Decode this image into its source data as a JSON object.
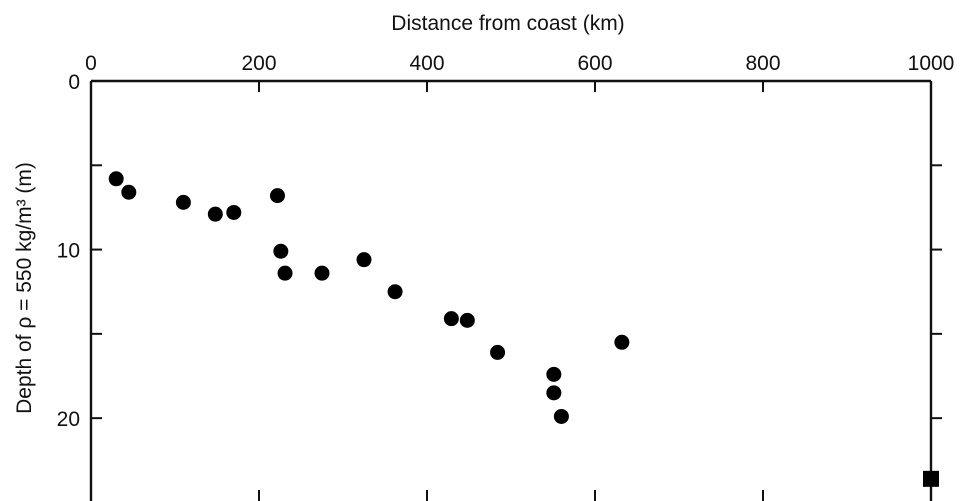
{
  "chart_data": {
    "type": "scatter",
    "title": "",
    "xlabel": "Distance from coast (km)",
    "ylabel": "Depth of ρ = 550 kg/m³ (m)",
    "xlim": [
      0,
      1000
    ],
    "ylim": [
      0,
      24.5
    ],
    "y_inverted": true,
    "x_axis_position": "top",
    "grid": false,
    "x_ticks": [
      0,
      200,
      400,
      600,
      800,
      1000
    ],
    "x_tick_labels": [
      "0",
      "200",
      "400",
      "600",
      "800",
      "1000"
    ],
    "y_ticks": [
      0,
      10,
      20
    ],
    "y_tick_labels": [
      "0",
      "10",
      "20"
    ],
    "marker_color": "#000000",
    "series": [
      {
        "marker": "circle",
        "points": [
          {
            "x": 30,
            "y": 5.8
          },
          {
            "x": 45,
            "y": 6.6
          },
          {
            "x": 110,
            "y": 7.2
          },
          {
            "x": 148,
            "y": 7.9
          },
          {
            "x": 170,
            "y": 7.8
          },
          {
            "x": 222,
            "y": 6.8
          },
          {
            "x": 226,
            "y": 10.1
          },
          {
            "x": 231,
            "y": 11.4
          },
          {
            "x": 275,
            "y": 11.4
          },
          {
            "x": 325,
            "y": 10.6
          },
          {
            "x": 362,
            "y": 12.5
          },
          {
            "x": 429,
            "y": 14.1
          },
          {
            "x": 448,
            "y": 14.2
          },
          {
            "x": 484,
            "y": 16.1
          },
          {
            "x": 551,
            "y": 17.4
          },
          {
            "x": 551,
            "y": 18.5
          },
          {
            "x": 560,
            "y": 19.9
          },
          {
            "x": 632,
            "y": 15.5
          }
        ]
      },
      {
        "marker": "square",
        "points": [
          {
            "x": 1000,
            "y": 23.6
          }
        ]
      }
    ]
  }
}
